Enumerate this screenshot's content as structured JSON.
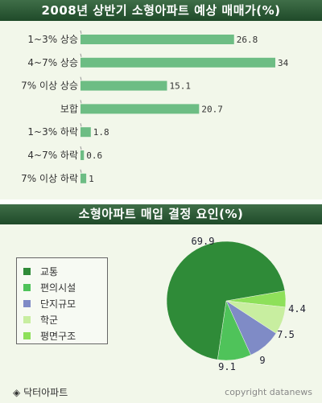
{
  "bar_chart_title": "2008년 상반기 소형아파트 예상 매매가(%)",
  "pie_chart_title": "소형아파트 매입 결정 요인(%)",
  "chart_data": [
    {
      "type": "bar",
      "orientation": "horizontal",
      "title": "2008년 상반기 소형아파트 예상 매매가(%)",
      "categories": [
        "1~3% 상승",
        "4~7% 상승",
        "7% 이상 상승",
        "보합",
        "1~3% 하락",
        "4~7% 하락",
        "7% 이상 하락"
      ],
      "values": [
        26.8,
        34,
        15.1,
        20.7,
        1.8,
        0.6,
        1
      ],
      "value_labels": [
        "26.8",
        "34",
        "15.1",
        "20.7",
        "1.8",
        "0.6",
        "1"
      ],
      "xlim": [
        0,
        34
      ],
      "grid": false,
      "bar_color": "#6dbd84"
    },
    {
      "type": "pie",
      "title": "소형아파트 매입 결정 요인(%)",
      "legend_position": "left",
      "slices": [
        {
          "label": "교통",
          "value": 69.9,
          "value_label": "69.9",
          "color": "#2f8b38"
        },
        {
          "label": "편의시설",
          "value": 9.1,
          "value_label": "9.1",
          "color": "#4fc35a"
        },
        {
          "label": "단지규모",
          "value": 9,
          "value_label": "9",
          "color": "#7f8bc6"
        },
        {
          "label": "학군",
          "value": 7.5,
          "value_label": "7.5",
          "color": "#c8eea0"
        },
        {
          "label": "평면구조",
          "value": 4.4,
          "value_label": "4.4",
          "color": "#8ee05a"
        }
      ]
    }
  ],
  "footer": {
    "brand_icon": "diamond-icon",
    "brand_symbol": "◈",
    "brand": "닥터아파트",
    "copyright": "copyright datanews"
  }
}
